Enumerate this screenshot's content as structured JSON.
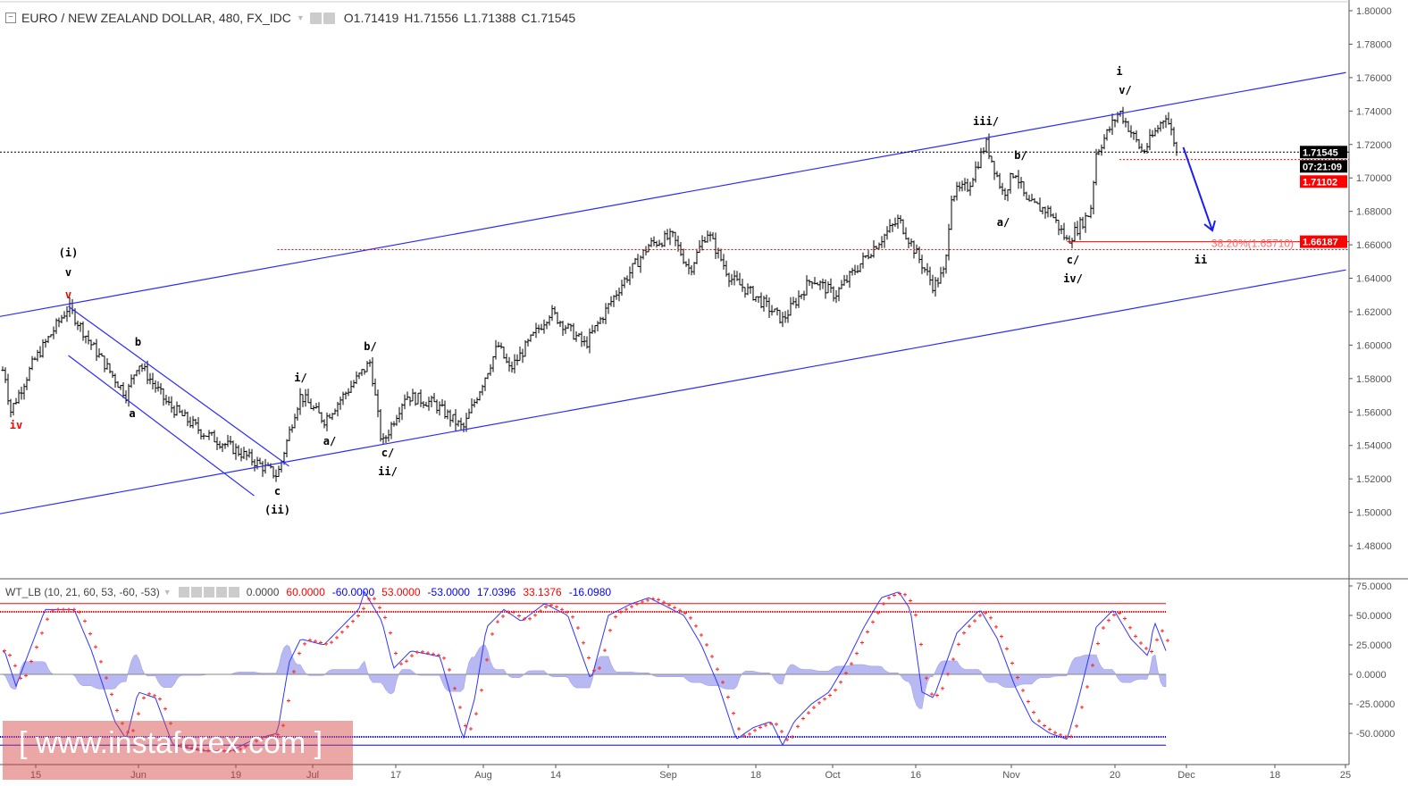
{
  "header": {
    "symbol": "EURO / NEW ZEALAND DOLLAR, 480, FX_IDC",
    "open": "O1.71419",
    "high": "H1.71556",
    "low": "L1.71388",
    "close": "C1.71545"
  },
  "indicator": {
    "name": "WT_LB (10, 21, 60, 53, -60, -53)",
    "values": [
      {
        "text": "0.0000",
        "color": "#444444"
      },
      {
        "text": "60.0000",
        "color": "#ff0000"
      },
      {
        "text": "-60.0000",
        "color": "#0000ff"
      },
      {
        "text": "53.0000",
        "color": "#ff0000"
      },
      {
        "text": "-53.0000",
        "color": "#0000ff"
      },
      {
        "text": "17.0396",
        "color": "#0000ff"
      },
      {
        "text": "33.1376",
        "color": "#ff0000"
      },
      {
        "text": "-16.0980",
        "color": "#0000ff"
      }
    ]
  },
  "price_labels": {
    "last": "1.71545",
    "countdown": "07:21:09",
    "level_1": "1.71102",
    "level_2": "1.66187",
    "fib": "38.20%(1.65710)"
  },
  "watermark": "[ www.instaforex.com ]",
  "colors": {
    "bars": "#000000",
    "channel": "#2a2aff",
    "fib": "#ff0000",
    "wt1": "#3333ff",
    "wt2": "#ff2222",
    "hist": "#b8b8f2"
  },
  "chart_data": [
    {
      "type": "ohlc",
      "title": "EURO / NEW ZEALAND DOLLAR, 480, FX_IDC",
      "ylim": [
        1.47,
        1.805
      ],
      "y_ticks": [
        "1.80000",
        "1.78000",
        "1.76000",
        "1.74000",
        "1.72000",
        "1.70000",
        "1.68000",
        "1.66000",
        "1.64000",
        "1.62000",
        "1.60000",
        "1.58000",
        "1.56000",
        "1.54000",
        "1.52000",
        "1.50000",
        "1.48000"
      ],
      "x_ticks": [
        "15",
        "Jun",
        "19",
        "Jul",
        "17",
        "Aug",
        "14",
        "Sep",
        "18",
        "Oct",
        "16",
        "Nov",
        "20",
        "Dec",
        "18",
        "25"
      ],
      "close_path": [
        [
          "2017-05-10",
          1.585
        ],
        [
          "2017-05-11",
          1.56
        ],
        [
          "2017-05-15",
          1.59
        ],
        [
          "2017-05-21",
          1.623
        ],
        [
          "2017-05-25",
          1.6
        ],
        [
          "2017-05-31",
          1.57
        ],
        [
          "2017-06-02",
          1.59
        ],
        [
          "2017-06-07",
          1.565
        ],
        [
          "2017-06-13",
          1.548
        ],
        [
          "2017-06-19",
          1.537
        ],
        [
          "2017-06-26",
          1.522
        ],
        [
          "2017-06-29",
          1.56
        ],
        [
          "2017-06-30",
          1.57
        ],
        [
          "2017-07-04",
          1.555
        ],
        [
          "2017-07-12",
          1.59
        ],
        [
          "2017-07-14",
          1.54
        ],
        [
          "2017-07-18",
          1.57
        ],
        [
          "2017-07-23",
          1.565
        ],
        [
          "2017-07-28",
          1.55
        ],
        [
          "2017-08-03",
          1.6
        ],
        [
          "2017-08-05",
          1.585
        ],
        [
          "2017-08-12",
          1.62
        ],
        [
          "2017-08-18",
          1.6
        ],
        [
          "2017-08-24",
          1.635
        ],
        [
          "2017-08-29",
          1.66
        ],
        [
          "2017-09-02",
          1.665
        ],
        [
          "2017-09-05",
          1.645
        ],
        [
          "2017-09-08",
          1.668
        ],
        [
          "2017-09-12",
          1.64
        ],
        [
          "2017-09-16",
          1.63
        ],
        [
          "2017-09-21",
          1.615
        ],
        [
          "2017-09-26",
          1.64
        ],
        [
          "2017-09-30",
          1.63
        ],
        [
          "2017-10-07",
          1.66
        ],
        [
          "2017-10-11",
          1.675
        ],
        [
          "2017-10-17",
          1.635
        ],
        [
          "2017-10-19",
          1.645
        ],
        [
          "2017-10-20",
          1.69
        ],
        [
          "2017-10-23",
          1.695
        ],
        [
          "2017-10-26",
          1.721
        ],
        [
          "2017-10-29",
          1.69
        ],
        [
          "2017-10-31",
          1.705
        ],
        [
          "2017-11-02",
          1.685
        ],
        [
          "2017-11-06",
          1.68
        ],
        [
          "2017-11-09",
          1.662
        ],
        [
          "2017-11-13",
          1.68
        ],
        [
          "2017-11-14",
          1.715
        ],
        [
          "2017-11-18",
          1.74
        ],
        [
          "2017-11-22",
          1.715
        ],
        [
          "2017-11-26",
          1.738
        ],
        [
          "2017-11-28",
          1.7155
        ]
      ],
      "last_price": 1.71545,
      "levels": [
        {
          "price": 1.71545,
          "style": "dotted",
          "color": "#000000"
        },
        {
          "price": 1.71102,
          "style": "dotted",
          "color": "#ff0000",
          "from": "2017-11-18"
        },
        {
          "price": 1.66187,
          "style": "solid",
          "color": "#ff0000",
          "from": "2017-11-09"
        },
        {
          "price": 1.6571,
          "style": "dotted",
          "color": "#ff0000",
          "from": "2017-06-26",
          "label": "38.20%(1.65710)"
        }
      ],
      "trendlines": [
        {
          "from": [
            "2017-05-09",
            1.617
          ],
          "to": [
            "2017-12-27",
            1.763
          ]
        },
        {
          "from": [
            "2017-05-09",
            1.499
          ],
          "to": [
            "2017-12-27",
            1.645
          ]
        },
        {
          "from": [
            "2017-05-21",
            1.6232
          ],
          "to": [
            "2017-06-28",
            1.5276
          ]
        },
        {
          "from": [
            "2017-05-21",
            1.5938
          ],
          "to": [
            "2017-06-22",
            1.5099
          ]
        }
      ],
      "arrow": {
        "from": [
          "2017-11-29",
          1.7183
        ],
        "to": [
          "2017-12-04",
          1.6686
        ]
      },
      "wave_labels": [
        {
          "text": "(i)",
          "date": "2017-05-21",
          "price": 1.6552,
          "color": "#000000"
        },
        {
          "text": "v",
          "date": "2017-05-21",
          "price": 1.6435,
          "color": "#000000"
        },
        {
          "text": "v",
          "date": "2017-05-21",
          "price": 1.63,
          "color": "#ff0000"
        },
        {
          "text": "iv",
          "date": "2017-05-12",
          "price": 1.5521,
          "color": "#ff0000"
        },
        {
          "text": "b",
          "date": "2017-06-02",
          "price": 1.6018,
          "color": "#000000"
        },
        {
          "text": "a",
          "date": "2017-06-01",
          "price": 1.5591,
          "color": "#000000"
        },
        {
          "text": "c",
          "date": "2017-06-26",
          "price": 1.5126,
          "color": "#000000"
        },
        {
          "text": "(ii)",
          "date": "2017-06-26",
          "price": 1.5014,
          "color": "#000000"
        },
        {
          "text": "i/",
          "date": "2017-06-30",
          "price": 1.5805,
          "color": "#000000"
        },
        {
          "text": "a/",
          "date": "2017-07-05",
          "price": 1.5425,
          "color": "#000000"
        },
        {
          "text": "b/",
          "date": "2017-07-12",
          "price": 1.5991,
          "color": "#000000"
        },
        {
          "text": "c/",
          "date": "2017-07-15",
          "price": 1.5356,
          "color": "#000000"
        },
        {
          "text": "ii/",
          "date": "2017-07-15",
          "price": 1.5244,
          "color": "#000000"
        },
        {
          "text": "iii/",
          "date": "2017-10-26",
          "price": 1.7338,
          "color": "#000000"
        },
        {
          "text": "b/",
          "date": "2017-11-01",
          "price": 1.7135,
          "color": "#000000"
        },
        {
          "text": "a/",
          "date": "2017-10-29",
          "price": 1.6734,
          "color": "#000000"
        },
        {
          "text": "c/",
          "date": "2017-11-10",
          "price": 1.651,
          "color": "#000000"
        },
        {
          "text": "iv/",
          "date": "2017-11-10",
          "price": 1.6397,
          "color": "#000000"
        },
        {
          "text": "i",
          "date": "2017-11-18",
          "price": 1.7637,
          "color": "#000000"
        },
        {
          "text": "v/",
          "date": "2017-11-19",
          "price": 1.7525,
          "color": "#000000"
        },
        {
          "text": "ii",
          "date": "2017-12-02",
          "price": 1.651,
          "color": "#000000"
        }
      ]
    },
    {
      "type": "line",
      "title": "WT_LB (10, 21, 60, 53, -60, -53)",
      "ylim": [
        -62,
        78
      ],
      "y_ticks": [
        "75.0000",
        "50.0000",
        "25.0000",
        "0.0000",
        "-25.0000",
        "-50.0000"
      ],
      "reference_levels": [
        {
          "value": 60,
          "color": "#ff0000",
          "style": "solid"
        },
        {
          "value": 53,
          "color": "#ff0000",
          "style": "dotted"
        },
        {
          "value": 0,
          "color": "#888888",
          "style": "solid"
        },
        {
          "value": -53,
          "color": "#0000ff",
          "style": "dotted"
        },
        {
          "value": -60,
          "color": "#0000ff",
          "style": "solid"
        }
      ],
      "series": [
        {
          "name": "WT1",
          "style": "line",
          "points": [
            [
              "2017-05-10",
              20
            ],
            [
              "2017-05-12",
              -10
            ],
            [
              "2017-05-17",
              55
            ],
            [
              "2017-05-22",
              55
            ],
            [
              "2017-05-25",
              20
            ],
            [
              "2017-05-29",
              -40
            ],
            [
              "2017-05-31",
              -55
            ],
            [
              "2017-06-02",
              -15
            ],
            [
              "2017-06-05",
              -20
            ],
            [
              "2017-06-08",
              -60
            ],
            [
              "2017-06-13",
              -65
            ],
            [
              "2017-06-18",
              -65
            ],
            [
              "2017-06-22",
              -55
            ],
            [
              "2017-06-26",
              -50
            ],
            [
              "2017-06-28",
              10
            ],
            [
              "2017-06-30",
              30
            ],
            [
              "2017-07-04",
              25
            ],
            [
              "2017-07-07",
              40
            ],
            [
              "2017-07-10",
              55
            ],
            [
              "2017-07-11",
              70
            ],
            [
              "2017-07-14",
              45
            ],
            [
              "2017-07-16",
              5
            ],
            [
              "2017-07-19",
              20
            ],
            [
              "2017-07-24",
              15
            ],
            [
              "2017-07-28",
              -55
            ],
            [
              "2017-07-30",
              -20
            ],
            [
              "2017-08-01",
              40
            ],
            [
              "2017-08-04",
              55
            ],
            [
              "2017-08-07",
              45
            ],
            [
              "2017-08-11",
              60
            ],
            [
              "2017-08-15",
              50
            ],
            [
              "2017-08-19",
              -5
            ],
            [
              "2017-08-22",
              50
            ],
            [
              "2017-08-26",
              60
            ],
            [
              "2017-08-29",
              65
            ],
            [
              "2017-09-04",
              50
            ],
            [
              "2017-09-07",
              25
            ],
            [
              "2017-09-10",
              -10
            ],
            [
              "2017-09-13",
              -55
            ],
            [
              "2017-09-16",
              -45
            ],
            [
              "2017-09-19",
              -40
            ],
            [
              "2017-09-21",
              -60
            ],
            [
              "2017-09-23",
              -40
            ],
            [
              "2017-09-26",
              -25
            ],
            [
              "2017-09-29",
              -15
            ],
            [
              "2017-10-02",
              10
            ],
            [
              "2017-10-05",
              40
            ],
            [
              "2017-10-08",
              65
            ],
            [
              "2017-10-11",
              70
            ],
            [
              "2017-10-13",
              55
            ],
            [
              "2017-10-15",
              -15
            ],
            [
              "2017-10-17",
              -20
            ],
            [
              "2017-10-21",
              35
            ],
            [
              "2017-10-25",
              55
            ],
            [
              "2017-10-28",
              30
            ],
            [
              "2017-10-31",
              -10
            ],
            [
              "2017-11-03",
              -40
            ],
            [
              "2017-11-06",
              -50
            ],
            [
              "2017-11-09",
              -55
            ],
            [
              "2017-11-11",
              -20
            ],
            [
              "2017-11-14",
              40
            ],
            [
              "2017-11-17",
              55
            ],
            [
              "2017-11-20",
              30
            ],
            [
              "2017-11-23",
              15
            ],
            [
              "2017-11-24",
              45
            ],
            [
              "2017-11-26",
              20
            ]
          ]
        },
        {
          "name": "WT2",
          "style": "dots",
          "derived": "4-period SMA of WT1"
        },
        {
          "name": "Histogram",
          "style": "area",
          "derived": "WT1 - WT2"
        }
      ]
    }
  ]
}
